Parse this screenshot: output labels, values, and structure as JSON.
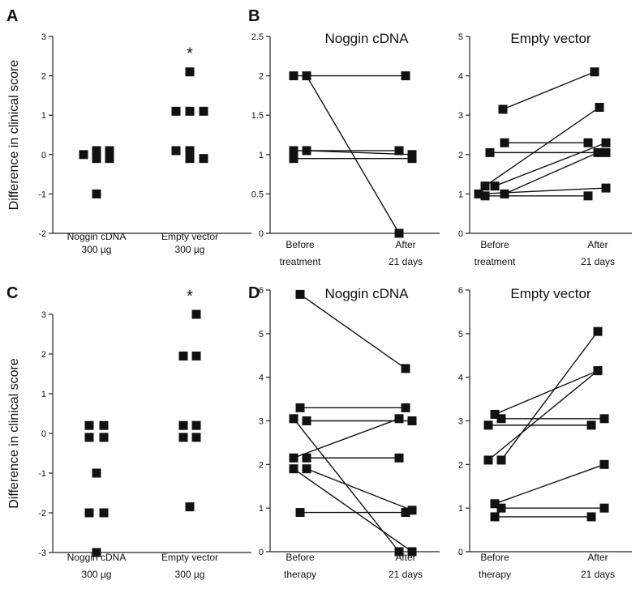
{
  "chart_data": [
    {
      "panel": "A",
      "type": "scatter",
      "ylabel": "Difference in clinical score",
      "ylim": [
        -2,
        3
      ],
      "yticks": [
        "-2",
        "-1",
        "0",
        "1",
        "2",
        "3"
      ],
      "categories": [
        {
          "line1": "Noggin cDNA",
          "line2": "300 µg"
        },
        {
          "line1": "Empty vector",
          "line2": "300 µg"
        }
      ],
      "annotation": "*",
      "series": [
        {
          "values": [
            0,
            0.1,
            0.1,
            -0.1,
            -0.1,
            -1
          ]
        },
        {
          "values": [
            2.1,
            1.1,
            1.1,
            1.1,
            0.1,
            0.1,
            -0.1,
            -0.1
          ]
        }
      ]
    },
    {
      "panel": "B",
      "type": "line",
      "title": "Noggin cDNA",
      "ylim": [
        0,
        2.5
      ],
      "yticks": [
        "0",
        "0.5",
        "1",
        "1.5",
        "2",
        "2.5"
      ],
      "categories": [
        {
          "line1": "Before",
          "line2": "treatment"
        },
        {
          "line1": "After",
          "line2": "21 days"
        }
      ],
      "pairs": [
        [
          2,
          2
        ],
        [
          2,
          0
        ],
        [
          1.05,
          1.05
        ],
        [
          1.05,
          1.0
        ],
        [
          0.95,
          0.95
        ]
      ]
    },
    {
      "panel": "",
      "type": "line",
      "title": "Empty vector",
      "ylim": [
        0,
        5
      ],
      "yticks": [
        "0",
        "1",
        "2",
        "3",
        "4",
        "5"
      ],
      "categories": [
        {
          "line1": "Before",
          "line2": "treatment"
        },
        {
          "line1": "After",
          "line2": "21 days"
        }
      ],
      "pairs": [
        [
          3.15,
          4.1
        ],
        [
          2.3,
          2.3
        ],
        [
          2.05,
          2.05
        ],
        [
          1.2,
          3.2
        ],
        [
          1.2,
          2.3
        ],
        [
          1.0,
          2.05
        ],
        [
          0.95,
          0.95
        ],
        [
          1.0,
          1.15
        ]
      ]
    },
    {
      "panel": "C",
      "type": "scatter",
      "ylabel": "Difference in clinical score",
      "ylim": [
        -3,
        3
      ],
      "yticks": [
        "-3",
        "-2",
        "-1",
        "0",
        "1",
        "2",
        "3"
      ],
      "categories": [
        {
          "line1": "Noggin cDNA",
          "line2": "300 µg"
        },
        {
          "line1": "Empty vector",
          "line2": "300 µg"
        }
      ],
      "annotation": "*",
      "series": [
        {
          "values": [
            0.2,
            0.2,
            -0.1,
            -0.1,
            -1,
            -2,
            -2,
            -3
          ]
        },
        {
          "values": [
            3,
            1.95,
            1.95,
            0.2,
            0.2,
            -0.1,
            -0.1,
            -1.85
          ]
        }
      ]
    },
    {
      "panel": "D",
      "type": "line",
      "title": "Noggin cDNA",
      "ylim": [
        0,
        6
      ],
      "yticks": [
        "0",
        "1",
        "2",
        "3",
        "4",
        "5",
        "6"
      ],
      "categories": [
        {
          "line1": "Before",
          "line2": "therapy"
        },
        {
          "line1": "After",
          "line2": "21 days"
        }
      ],
      "pairs": [
        [
          5.9,
          4.2
        ],
        [
          3.3,
          3.3
        ],
        [
          3.05,
          0
        ],
        [
          3.0,
          3.0
        ],
        [
          2.15,
          3.05
        ],
        [
          2.15,
          2.15
        ],
        [
          1.9,
          0
        ],
        [
          1.9,
          0.95
        ],
        [
          0.9,
          0.9
        ]
      ]
    },
    {
      "panel": "",
      "type": "line",
      "title": "Empty vector",
      "ylim": [
        0,
        6
      ],
      "yticks": [
        "0",
        "1",
        "2",
        "3",
        "4",
        "5",
        "6"
      ],
      "categories": [
        {
          "line1": "Before",
          "line2": "therapy"
        },
        {
          "line1": "After",
          "line2": "21 days"
        }
      ],
      "pairs": [
        [
          3.15,
          4.15
        ],
        [
          3.05,
          3.05
        ],
        [
          2.9,
          2.9
        ],
        [
          2.1,
          4.15
        ],
        [
          2.1,
          5.05
        ],
        [
          1.1,
          2.0
        ],
        [
          1.0,
          1.0
        ],
        [
          0.8,
          0.8
        ]
      ]
    }
  ]
}
